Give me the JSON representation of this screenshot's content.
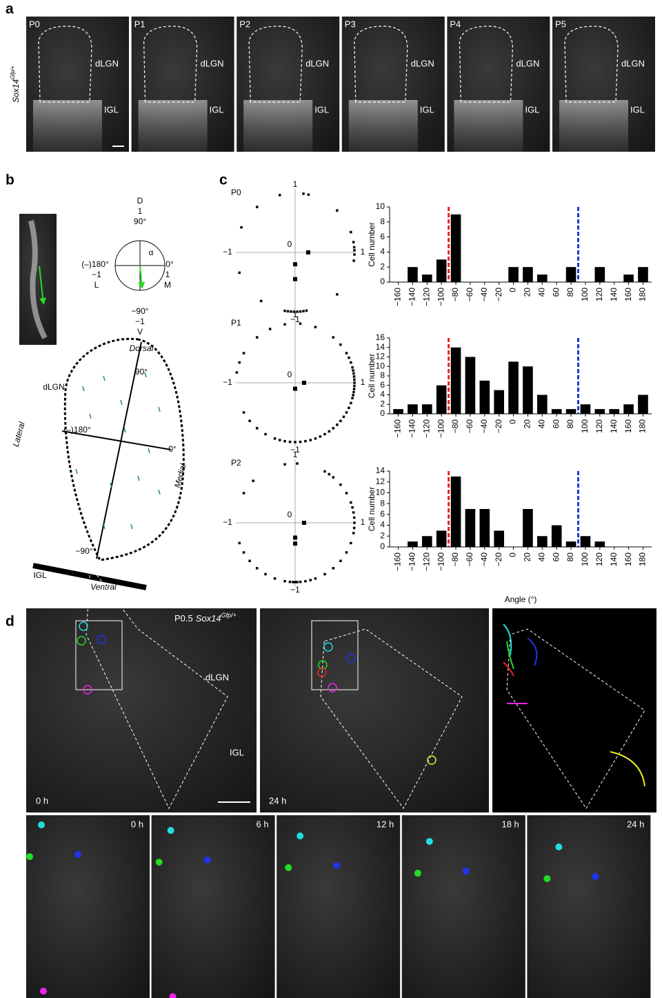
{
  "panel_a": {
    "letter": "a",
    "genotype": {
      "gene": "Sox14",
      "allele": "Gfp/+"
    },
    "images": [
      {
        "age": "P0",
        "region_top": "dLGN",
        "region_bottom": "IGL"
      },
      {
        "age": "P1",
        "region_top": "dLGN",
        "region_bottom": "IGL"
      },
      {
        "age": "P2",
        "region_top": "dLGN",
        "region_bottom": "IGL"
      },
      {
        "age": "P3",
        "region_top": "dLGN",
        "region_bottom": "IGL"
      },
      {
        "age": "P4",
        "region_top": "dLGN",
        "region_bottom": "IGL"
      },
      {
        "age": "P5",
        "region_top": "dLGN",
        "region_bottom": "IGL"
      }
    ]
  },
  "panel_b": {
    "letter": "b",
    "compass": {
      "dorsal_letter": "D",
      "dorsal_value": "1",
      "dorsal_angle": "90°",
      "lateral_angle": "(–)180°",
      "lateral_value": "−1",
      "lateral_letter": "L",
      "medial_angle": "0°",
      "medial_value": "1",
      "medial_letter": "M",
      "ventral_angle": "−90°",
      "ventral_value": "−1",
      "ventral_letter": "V",
      "alpha": "α"
    },
    "schematic": {
      "dorsal": "Dorsal",
      "angle_90": "90°",
      "region": "dLGN",
      "lateral": "Lateral",
      "angle_180": "(–)180°",
      "angle_0": "0°",
      "medial": "Medial",
      "angle_m90": "−90°",
      "igl": "IGL",
      "ventral": "Ventral"
    }
  },
  "panel_c": {
    "letter": "c"
  },
  "chart_data": [
    {
      "type": "polar",
      "title": "P0",
      "angles": [
        105,
        82,
        77,
        45,
        20,
        10,
        5,
        2,
        -2,
        -8,
        -45,
        130,
        155,
        -160,
        -125,
        -100,
        -97,
        -94,
        -91,
        -88,
        -85,
        -82,
        -79,
        0,
        -90,
        -90
      ],
      "r": [
        1,
        1,
        1,
        1,
        1,
        1,
        1,
        1,
        1,
        1,
        1,
        1,
        1,
        1,
        1,
        1,
        1,
        1,
        1,
        1,
        1,
        1,
        1,
        0.22,
        0.2,
        0.45
      ],
      "xticks": [
        {
          "value": -1,
          "label": "−1"
        },
        0,
        1
      ],
      "yticks": [
        {
          "value": -1,
          "label": "−1"
        },
        1
      ],
      "ytick_colors": [
        "#e8241b",
        "#1a3ccc"
      ]
    },
    {
      "type": "bar",
      "color": "#000000",
      "x": [
        -160,
        -140,
        -120,
        -100,
        -80,
        -60,
        -40,
        -20,
        0,
        20,
        40,
        60,
        80,
        100,
        120,
        140,
        160,
        180
      ],
      "values": [
        0,
        2,
        1,
        3,
        9,
        0,
        0,
        0,
        2,
        2,
        1,
        0,
        2,
        0,
        2,
        0,
        1,
        2
      ],
      "xlim": [
        -172,
        192
      ],
      "xticks": [
        {
          "value": -160,
          "label": "−160"
        },
        {
          "value": -140,
          "label": "−140"
        },
        {
          "value": -120,
          "label": "−120"
        },
        {
          "value": -100,
          "label": "−100"
        },
        {
          "value": -80,
          "label": "−80"
        },
        {
          "value": -60,
          "label": "−60"
        },
        {
          "value": -40,
          "label": "−40"
        },
        {
          "value": -20,
          "label": "−20"
        },
        0,
        20,
        40,
        60,
        80,
        100,
        120,
        140,
        160,
        180
      ],
      "ylim": [
        0,
        10
      ],
      "yticks": [
        0,
        2,
        4,
        6,
        8,
        10
      ],
      "ylabel": "Cell number",
      "ref_lines": [
        {
          "value": -90,
          "color": "#e8241b"
        },
        {
          "value": 90,
          "color": "#1a3ccc"
        }
      ]
    },
    {
      "type": "polar",
      "title": "P1",
      "angles": [
        100,
        85,
        70,
        50,
        40,
        30,
        25,
        20,
        15,
        12,
        9,
        6,
        3,
        0,
        -3,
        -6,
        -9,
        -12,
        -15,
        -20,
        -25,
        -30,
        -35,
        -40,
        -45,
        -50,
        -55,
        -60,
        -65,
        -70,
        -75,
        -80,
        -85,
        -90,
        -95,
        -100,
        -105,
        -110,
        -120,
        -130,
        -140,
        -150,
        170,
        160,
        150,
        130,
        115,
        0,
        -90
      ],
      "r": [
        1,
        1,
        1,
        1,
        1,
        1,
        1,
        1,
        1,
        1,
        1,
        1,
        1,
        1,
        1,
        1,
        1,
        1,
        1,
        1,
        1,
        1,
        1,
        1,
        1,
        1,
        1,
        1,
        1,
        1,
        1,
        1,
        1,
        1,
        1,
        1,
        1,
        1,
        1,
        1,
        1,
        1,
        1,
        1,
        1,
        1,
        1,
        0.15,
        0.1
      ],
      "xticks": [
        {
          "value": -1,
          "label": "−1"
        },
        0,
        1
      ],
      "yticks": [
        {
          "value": -1,
          "label": "−1"
        },
        1
      ],
      "ytick_colors": [
        "#e8241b",
        "#1a3ccc"
      ]
    },
    {
      "type": "bar",
      "color": "#000000",
      "x": [
        -160,
        -140,
        -120,
        -100,
        -80,
        -60,
        -40,
        -20,
        0,
        20,
        40,
        60,
        80,
        100,
        120,
        140,
        160,
        180
      ],
      "values": [
        1,
        2,
        2,
        6,
        14,
        12,
        7,
        5,
        11,
        10,
        4,
        1,
        1,
        2,
        1,
        1,
        2,
        4
      ],
      "xlim": [
        -172,
        192
      ],
      "xticks": [
        {
          "value": -160,
          "label": "−160"
        },
        {
          "value": -140,
          "label": "−140"
        },
        {
          "value": -120,
          "label": "−120"
        },
        {
          "value": -100,
          "label": "−100"
        },
        {
          "value": -80,
          "label": "−80"
        },
        {
          "value": -60,
          "label": "−60"
        },
        {
          "value": -40,
          "label": "−40"
        },
        {
          "value": -20,
          "label": "−20"
        },
        0,
        20,
        40,
        60,
        80,
        100,
        120,
        140,
        160,
        180
      ],
      "ylim": [
        0,
        16
      ],
      "yticks": [
        0,
        2,
        4,
        6,
        8,
        10,
        12,
        14,
        16
      ],
      "ylabel": "Cell number",
      "ref_lines": [
        {
          "value": -90,
          "color": "#e8241b"
        },
        {
          "value": 90,
          "color": "#1a3ccc"
        }
      ]
    },
    {
      "type": "polar",
      "title": "P2",
      "angles": [
        100,
        88,
        60,
        55,
        50,
        40,
        30,
        20,
        15,
        10,
        5,
        0,
        -5,
        -10,
        -20,
        -30,
        -40,
        -50,
        -60,
        -70,
        -75,
        -80,
        -85,
        -88,
        -90,
        -92,
        -95,
        -100,
        -110,
        -120,
        -130,
        -140,
        -150,
        -160,
        150,
        135,
        0,
        -90,
        -90
      ],
      "r": [
        1,
        1,
        1,
        1,
        1,
        1,
        1,
        1,
        1,
        1,
        1,
        1,
        1,
        1,
        1,
        1,
        1,
        1,
        1,
        1,
        1,
        1,
        1,
        1,
        1,
        1,
        1,
        1,
        1,
        1,
        1,
        1,
        1,
        1,
        1,
        1,
        0.15,
        0.25,
        0.35
      ],
      "xticks": [
        {
          "value": -1,
          "label": "−1"
        },
        0,
        1
      ],
      "yticks": [
        {
          "value": -1,
          "label": "−1"
        },
        1
      ],
      "ytick_colors": [
        "#e8241b",
        "#1a3ccc"
      ]
    },
    {
      "type": "bar",
      "color": "#000000",
      "x": [
        -160,
        -140,
        -120,
        -100,
        -80,
        -60,
        -40,
        -20,
        0,
        20,
        40,
        60,
        80,
        100,
        120,
        140,
        160,
        180
      ],
      "values": [
        0,
        1,
        2,
        3,
        13,
        7,
        7,
        3,
        0,
        7,
        2,
        4,
        1,
        2,
        1,
        0,
        0,
        0
      ],
      "xlim": [
        -172,
        192
      ],
      "xticks": [
        {
          "value": -160,
          "label": "−160"
        },
        {
          "value": -140,
          "label": "−140"
        },
        {
          "value": -120,
          "label": "−120"
        },
        {
          "value": -100,
          "label": "−100"
        },
        {
          "value": -80,
          "label": "−80"
        },
        {
          "value": -60,
          "label": "−60"
        },
        {
          "value": -40,
          "label": "−40"
        },
        {
          "value": -20,
          "label": "−20"
        },
        0,
        20,
        40,
        60,
        80,
        100,
        120,
        140,
        160,
        180
      ],
      "ylim": [
        0,
        14
      ],
      "yticks": [
        0,
        2,
        4,
        6,
        8,
        10,
        12,
        14
      ],
      "ylabel": "Cell number",
      "xlabel": "Angle (°)",
      "ref_lines": [
        {
          "value": -90,
          "color": "#e8241b"
        },
        {
          "value": 90,
          "color": "#1a3ccc"
        }
      ]
    }
  ],
  "panel_d": {
    "letter": "d",
    "overview": {
      "age": "P0.5",
      "gene": "Sox14",
      "allele": "Gfp/+",
      "region_top": "dLGN",
      "region_bottom": "IGL",
      "time_start": "0 h",
      "time_end": "24 h"
    },
    "timelapse": [
      "0 h",
      "6 h",
      "12 h",
      "18 h",
      "24 h"
    ]
  }
}
